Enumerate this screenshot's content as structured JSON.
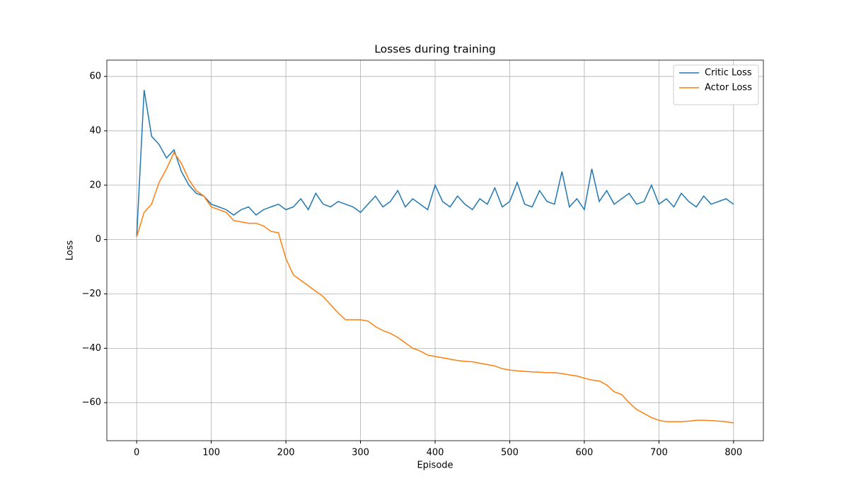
{
  "chart_data": {
    "type": "line",
    "title": "Losses during training",
    "xlabel": "Episode",
    "ylabel": "Loss",
    "x": [
      0,
      10,
      20,
      30,
      40,
      50,
      60,
      70,
      80,
      90,
      100,
      110,
      120,
      130,
      140,
      150,
      160,
      170,
      180,
      190,
      200,
      210,
      220,
      230,
      240,
      250,
      260,
      270,
      280,
      290,
      300,
      310,
      320,
      330,
      340,
      350,
      360,
      370,
      380,
      390,
      400,
      410,
      420,
      430,
      440,
      450,
      460,
      470,
      480,
      490,
      500,
      510,
      520,
      530,
      540,
      550,
      560,
      570,
      580,
      590,
      600,
      610,
      620,
      630,
      640,
      650,
      660,
      670,
      680,
      690,
      700,
      710,
      720,
      730,
      740,
      750,
      760,
      770,
      780,
      790,
      800
    ],
    "series": [
      {
        "name": "Critic Loss",
        "color": "#1f77b4",
        "values": [
          1,
          55,
          38,
          35,
          30,
          33,
          25,
          20,
          17,
          16,
          13,
          12,
          11,
          9,
          11,
          12,
          9,
          11,
          12,
          13,
          11,
          12,
          15,
          11,
          17,
          13,
          12,
          14,
          13,
          12,
          10,
          13,
          16,
          12,
          14,
          18,
          12,
          15,
          13,
          11,
          20,
          14,
          12,
          16,
          13,
          11,
          15,
          13,
          19,
          12,
          14,
          21,
          13,
          12,
          18,
          14,
          13,
          25,
          12,
          15,
          11,
          26,
          14,
          18,
          13,
          15,
          17,
          13,
          14,
          20,
          13,
          15,
          12,
          17,
          14,
          12,
          16,
          13,
          14,
          15,
          13
        ]
      },
      {
        "name": "Actor Loss",
        "color": "#ff7f0e",
        "values": [
          1,
          10,
          13,
          21,
          26,
          32,
          28,
          22,
          18,
          16,
          12,
          11,
          10,
          7,
          6.5,
          6,
          6,
          5,
          3,
          2.5,
          -7,
          -13,
          -15,
          -17,
          -19,
          -21,
          -24,
          -27,
          -29.5,
          -29.5,
          -29.5,
          -30,
          -32,
          -33.5,
          -34.5,
          -36,
          -38,
          -40,
          -41,
          -42.5,
          -43,
          -43.5,
          -44,
          -44.5,
          -44.8,
          -45,
          -45.5,
          -46,
          -46.5,
          -47.5,
          -48,
          -48.3,
          -48.5,
          -48.7,
          -48.8,
          -49,
          -49,
          -49.3,
          -49.8,
          -50.2,
          -51,
          -51.7,
          -52,
          -53.5,
          -56,
          -57,
          -60,
          -62.5,
          -64,
          -65.5,
          -66.5,
          -67,
          -67,
          -67,
          -66.8,
          -66.5,
          -66.5,
          -66.6,
          -66.8,
          -67,
          -67.5
        ]
      }
    ],
    "xlim": [
      -40,
      840
    ],
    "ylim": [
      -74,
      66
    ],
    "xticks": [
      0,
      100,
      200,
      300,
      400,
      500,
      600,
      700,
      800
    ],
    "yticks": [
      {
        "value": -60,
        "label": "−60"
      },
      {
        "value": -40,
        "label": "−40"
      },
      {
        "value": -20,
        "label": "−20"
      },
      0,
      20,
      40,
      60
    ],
    "grid": true,
    "legend": "upper right"
  }
}
